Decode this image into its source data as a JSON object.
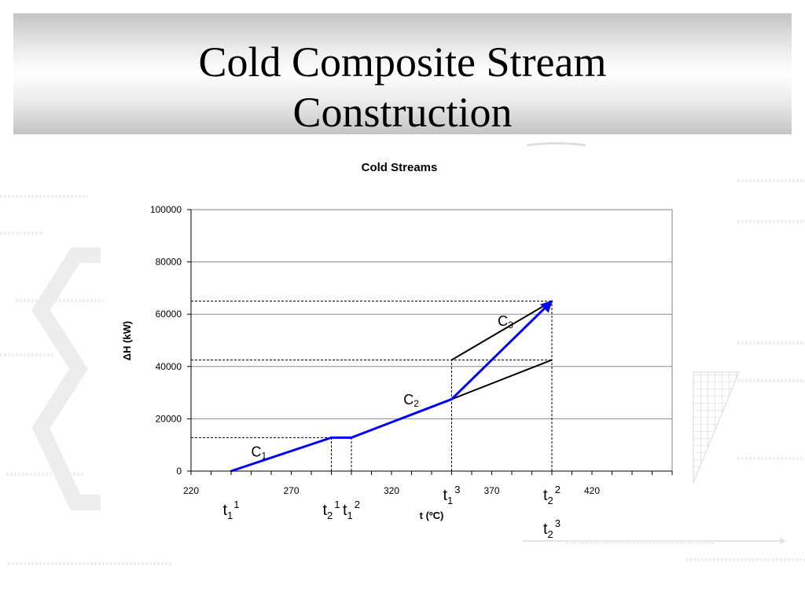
{
  "slide": {
    "title_line1": "Cold Composite Stream",
    "title_line2": "Construction"
  },
  "chart_data": {
    "type": "line",
    "title": "Cold Streams",
    "xlabel": "t (ºC)",
    "ylabel": "ΔH (kW)",
    "xlim": [
      220,
      460
    ],
    "ylim": [
      0,
      100000
    ],
    "x_ticks": [
      220,
      270,
      320,
      370,
      420
    ],
    "y_ticks": [
      0,
      20000,
      40000,
      60000,
      80000,
      100000
    ],
    "grid": "horizontal",
    "composite": {
      "name": "",
      "color": "#0000ff",
      "points": [
        [
          240,
          0
        ],
        [
          290,
          12800
        ],
        [
          300,
          12800
        ],
        [
          350,
          27500
        ],
        [
          400,
          65000
        ]
      ]
    },
    "segments": [
      {
        "color": "#000000",
        "points": [
          [
            350,
            27500
          ],
          [
            400,
            42500
          ]
        ]
      },
      {
        "color": "#000000",
        "points": [
          [
            350,
            42500
          ],
          [
            400,
            65000
          ]
        ]
      }
    ],
    "guides": [
      {
        "type": "h",
        "y": 12800,
        "x_to": 300
      },
      {
        "type": "h",
        "y": 42500,
        "x_to": 400
      },
      {
        "type": "h",
        "y": 65000,
        "x_to": 400
      },
      {
        "type": "v",
        "x": 290,
        "y_to": 12800
      },
      {
        "type": "v",
        "x": 300,
        "y_to": 12800
      },
      {
        "type": "v",
        "x": 350,
        "y_to": 42500
      },
      {
        "type": "v",
        "x": 400,
        "y_to": 65000
      }
    ],
    "stream_labels": [
      {
        "base": "C",
        "sub": "1",
        "x": 250,
        "y": 5500
      },
      {
        "base": "C",
        "sub": "2",
        "x": 326,
        "y": 25500
      },
      {
        "base": "C",
        "sub": "3",
        "x": 373,
        "y": 55500
      }
    ],
    "temperature_labels": [
      {
        "base": "t",
        "sub": "1",
        "sup": "1",
        "x": 240,
        "row": 1
      },
      {
        "base": "t",
        "sub": "2",
        "sup": "1",
        "x": 290,
        "row": 1
      },
      {
        "base": "t",
        "sub": "1",
        "sup": "2",
        "x": 300,
        "row": 1
      },
      {
        "base": "t",
        "sub": "1",
        "sup": "3",
        "x": 350,
        "row": 0
      },
      {
        "base": "t",
        "sub": "2",
        "sup": "2",
        "x": 400,
        "row": 0
      },
      {
        "base": "t",
        "sub": "2",
        "sup": "3",
        "x": 400,
        "row": 2
      }
    ]
  }
}
